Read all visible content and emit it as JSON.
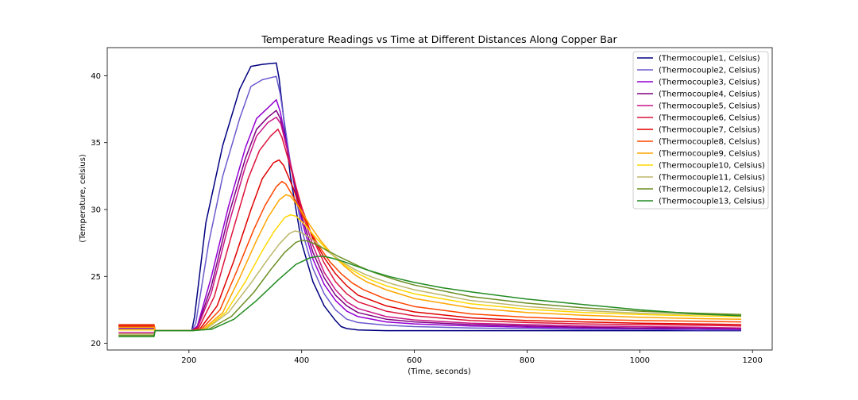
{
  "chart_data": {
    "type": "line",
    "title": "Temperature Readings vs Time at Different Distances Along Copper Bar",
    "xlabel": "(Time, seconds)",
    "ylabel": "(Temperature, celsius)",
    "xlim": [
      55,
      1235
    ],
    "ylim": [
      19.5,
      42.1
    ],
    "xticks": [
      200,
      400,
      600,
      800,
      1000,
      1200
    ],
    "yticks": [
      20,
      25,
      30,
      35,
      40
    ],
    "grid": false,
    "legend_position": "top-right",
    "series": [
      {
        "name": "(Thermocouple1, Celsius)",
        "color": "#000080",
        "x": [
          75,
          138,
          140,
          205,
          210,
          230,
          260,
          290,
          310,
          330,
          355,
          360,
          380,
          400,
          420,
          440,
          460,
          470,
          480,
          500,
          550,
          600,
          700,
          800,
          900,
          1000,
          1100,
          1180
        ],
        "y": [
          21.0,
          21.0,
          20.95,
          20.95,
          22.0,
          29.0,
          34.8,
          39.0,
          40.7,
          40.85,
          40.95,
          39.8,
          32.5,
          27.5,
          24.6,
          22.8,
          21.7,
          21.25,
          21.1,
          21.0,
          20.95,
          20.95,
          20.95,
          20.95,
          20.95,
          20.95,
          20.95,
          20.95
        ]
      },
      {
        "name": "(Thermocouple2, Celsius)",
        "color": "#6a5acd",
        "x": [
          75,
          138,
          140,
          205,
          212,
          235,
          260,
          290,
          310,
          330,
          355,
          362,
          380,
          400,
          420,
          440,
          460,
          480,
          500,
          550,
          600,
          700,
          800,
          900,
          1000,
          1100,
          1180
        ],
        "y": [
          21.4,
          21.4,
          20.95,
          20.95,
          21.5,
          27.5,
          32.5,
          36.8,
          39.2,
          39.7,
          39.95,
          38.6,
          33.5,
          28.5,
          25.6,
          23.7,
          22.5,
          21.8,
          21.55,
          21.35,
          21.25,
          21.15,
          21.1,
          21.05,
          21.05,
          21.0,
          21.0
        ]
      },
      {
        "name": "(Thermocouple3, Celsius)",
        "color": "#9400d3",
        "x": [
          75,
          138,
          140,
          205,
          215,
          240,
          270,
          300,
          320,
          340,
          355,
          362,
          380,
          400,
          420,
          440,
          460,
          480,
          500,
          550,
          600,
          700,
          800,
          900,
          1000,
          1100,
          1180
        ],
        "y": [
          21.3,
          21.3,
          20.95,
          20.95,
          21.3,
          25.0,
          30.2,
          34.6,
          36.8,
          37.6,
          38.2,
          37.3,
          33.4,
          29.2,
          26.3,
          24.4,
          23.2,
          22.4,
          22.0,
          21.6,
          21.45,
          21.3,
          21.2,
          21.15,
          21.1,
          21.1,
          21.05
        ]
      },
      {
        "name": "(Thermocouple4, Celsius)",
        "color": "#800080",
        "x": [
          75,
          138,
          140,
          205,
          215,
          240,
          270,
          300,
          320,
          340,
          355,
          362,
          380,
          400,
          420,
          440,
          460,
          480,
          500,
          550,
          600,
          700,
          800,
          900,
          1000,
          1100,
          1180
        ],
        "y": [
          21.1,
          21.1,
          20.95,
          20.95,
          21.2,
          24.3,
          29.5,
          33.8,
          36.0,
          36.9,
          37.4,
          36.8,
          33.4,
          29.5,
          26.8,
          24.9,
          23.6,
          22.8,
          22.3,
          21.8,
          21.6,
          21.4,
          21.3,
          21.2,
          21.15,
          21.15,
          21.1
        ]
      },
      {
        "name": "(Thermocouple5, Celsius)",
        "color": "#c71585",
        "x": [
          75,
          138,
          140,
          205,
          215,
          240,
          270,
          300,
          320,
          340,
          355,
          363,
          380,
          400,
          420,
          440,
          460,
          480,
          500,
          550,
          600,
          700,
          800,
          900,
          1000,
          1100,
          1180
        ],
        "y": [
          20.8,
          20.8,
          20.95,
          20.95,
          21.15,
          23.8,
          28.8,
          33.2,
          35.5,
          36.5,
          36.9,
          36.4,
          33.5,
          29.9,
          27.3,
          25.3,
          24.0,
          23.1,
          22.6,
          22.0,
          21.75,
          21.5,
          21.4,
          21.3,
          21.25,
          21.2,
          21.15
        ]
      },
      {
        "name": "(Thermocouple6, Celsius)",
        "color": "#dc143c",
        "x": [
          75,
          138,
          140,
          205,
          218,
          245,
          275,
          305,
          325,
          345,
          358,
          365,
          380,
          400,
          420,
          440,
          460,
          480,
          500,
          550,
          600,
          700,
          800,
          900,
          1000,
          1100,
          1180
        ],
        "y": [
          21.2,
          21.2,
          20.95,
          20.95,
          21.2,
          23.5,
          28.0,
          32.3,
          34.4,
          35.5,
          36.0,
          35.4,
          33.2,
          30.2,
          27.8,
          26.0,
          24.6,
          23.7,
          23.1,
          22.4,
          22.05,
          21.7,
          21.55,
          21.45,
          21.4,
          21.35,
          21.3
        ]
      },
      {
        "name": "(Thermocouple7, Celsius)",
        "color": "#e00000",
        "x": [
          75,
          138,
          140,
          205,
          220,
          250,
          280,
          310,
          330,
          350,
          360,
          368,
          385,
          400,
          420,
          440,
          460,
          480,
          500,
          550,
          600,
          700,
          800,
          900,
          1000,
          1100,
          1180
        ],
        "y": [
          21.3,
          21.3,
          20.95,
          20.95,
          21.1,
          22.8,
          26.2,
          30.0,
          32.3,
          33.5,
          33.7,
          33.3,
          31.6,
          29.9,
          27.9,
          26.4,
          25.2,
          24.3,
          23.6,
          22.8,
          22.35,
          21.9,
          21.7,
          21.6,
          21.5,
          21.45,
          21.4
        ]
      },
      {
        "name": "(Thermocouple8, Celsius)",
        "color": "#ff4500",
        "x": [
          75,
          138,
          140,
          205,
          222,
          255,
          285,
          315,
          335,
          355,
          365,
          372,
          390,
          410,
          430,
          450,
          470,
          490,
          510,
          550,
          600,
          700,
          800,
          900,
          1000,
          1100,
          1180
        ],
        "y": [
          21.4,
          21.4,
          20.95,
          20.95,
          21.05,
          22.5,
          25.4,
          28.5,
          30.3,
          31.7,
          32.1,
          31.9,
          30.6,
          28.8,
          27.3,
          26.1,
          25.2,
          24.5,
          24.0,
          23.3,
          22.75,
          22.2,
          21.95,
          21.8,
          21.7,
          21.65,
          21.6
        ]
      },
      {
        "name": "(Thermocouple9, Celsius)",
        "color": "#ffa500",
        "x": [
          75,
          138,
          140,
          205,
          225,
          260,
          290,
          320,
          340,
          360,
          372,
          380,
          395,
          415,
          435,
          455,
          475,
          495,
          515,
          550,
          600,
          700,
          800,
          900,
          1000,
          1100,
          1180
        ],
        "y": [
          21.2,
          21.2,
          20.95,
          20.95,
          21.05,
          22.3,
          24.9,
          27.7,
          29.4,
          30.7,
          31.1,
          31.0,
          30.2,
          28.8,
          27.6,
          26.6,
          25.8,
          25.1,
          24.6,
          24.0,
          23.35,
          22.65,
          22.3,
          22.1,
          21.95,
          21.85,
          21.8
        ]
      },
      {
        "name": "(Thermocouple10, Celsius)",
        "color": "#ffd700",
        "x": [
          75,
          138,
          140,
          205,
          228,
          265,
          300,
          330,
          350,
          370,
          380,
          390,
          405,
          425,
          445,
          465,
          485,
          505,
          525,
          550,
          600,
          700,
          800,
          900,
          1000,
          1100,
          1180
        ],
        "y": [
          21.0,
          21.0,
          20.95,
          20.95,
          21.05,
          22.3,
          24.6,
          26.9,
          28.3,
          29.4,
          29.6,
          29.5,
          28.9,
          27.9,
          27.0,
          26.2,
          25.6,
          25.1,
          24.7,
          24.3,
          23.7,
          22.95,
          22.55,
          22.3,
          22.15,
          22.05,
          22.0
        ]
      },
      {
        "name": "(Thermocouple11, Celsius)",
        "color": "#bdb76b",
        "x": [
          75,
          138,
          140,
          205,
          230,
          270,
          310,
          340,
          360,
          378,
          388,
          398,
          415,
          435,
          455,
          475,
          495,
          515,
          535,
          560,
          600,
          700,
          800,
          900,
          1000,
          1100,
          1180
        ],
        "y": [
          20.7,
          20.7,
          20.95,
          20.95,
          21.05,
          22.3,
          24.5,
          26.3,
          27.4,
          28.2,
          28.4,
          28.3,
          27.9,
          27.2,
          26.6,
          26.0,
          25.5,
          25.1,
          24.8,
          24.45,
          24.0,
          23.2,
          22.75,
          22.45,
          22.25,
          22.15,
          22.1
        ]
      },
      {
        "name": "(Thermocouple12, Celsius)",
        "color": "#6b8e23",
        "x": [
          75,
          138,
          140,
          205,
          235,
          275,
          315,
          345,
          370,
          390,
          400,
          410,
          425,
          445,
          465,
          485,
          505,
          525,
          545,
          570,
          600,
          700,
          800,
          900,
          1000,
          1100,
          1180
        ],
        "y": [
          20.6,
          20.6,
          20.95,
          20.95,
          21.05,
          22.0,
          23.8,
          25.5,
          26.8,
          27.55,
          27.7,
          27.65,
          27.4,
          26.95,
          26.5,
          26.1,
          25.7,
          25.35,
          25.05,
          24.7,
          24.35,
          23.5,
          23.0,
          22.65,
          22.4,
          22.25,
          22.15
        ]
      },
      {
        "name": "(Thermocouple13, Celsius)",
        "color": "#228b22",
        "x": [
          75,
          138,
          140,
          205,
          240,
          280,
          320,
          360,
          390,
          415,
          430,
          440,
          455,
          475,
          495,
          515,
          535,
          555,
          575,
          600,
          650,
          700,
          800,
          900,
          1000,
          1100,
          1180
        ],
        "y": [
          20.5,
          20.5,
          20.95,
          20.95,
          21.05,
          21.8,
          23.2,
          24.8,
          25.9,
          26.4,
          26.5,
          26.5,
          26.35,
          26.1,
          25.8,
          25.5,
          25.25,
          25.0,
          24.8,
          24.55,
          24.15,
          23.85,
          23.3,
          22.9,
          22.5,
          22.2,
          22.05
        ]
      }
    ]
  }
}
